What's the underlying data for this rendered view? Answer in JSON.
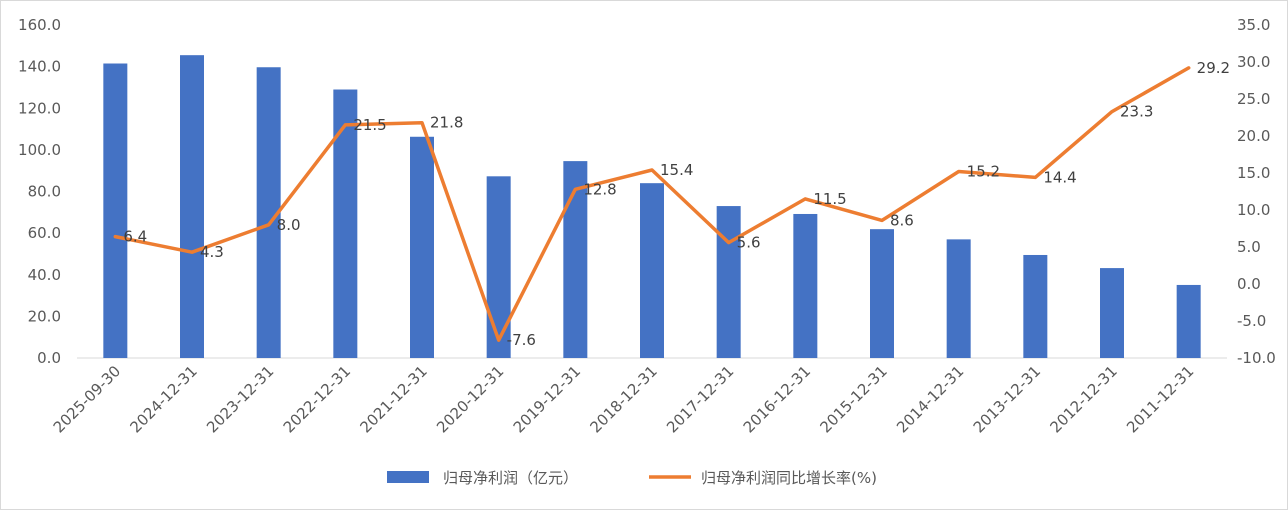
{
  "chart_data": {
    "type": "bar+line",
    "categories": [
      "2025-09-30",
      "2024-12-31",
      "2023-12-31",
      "2022-12-31",
      "2021-12-31",
      "2020-12-31",
      "2019-12-31",
      "2018-12-31",
      "2017-12-31",
      "2016-12-31",
      "2015-12-31",
      "2014-12-31",
      "2013-12-31",
      "2012-12-31",
      "2011-12-31"
    ],
    "series": [
      {
        "name": "归母净利润（亿元）",
        "type": "bar",
        "axis": "left",
        "color": "#4472C4",
        "values": [
          141.5,
          145.5,
          139.7,
          129.0,
          106.3,
          87.3,
          94.6,
          84.0,
          73.0,
          69.2,
          61.9,
          57.0,
          49.5,
          43.2,
          35.1
        ]
      },
      {
        "name": "归母净利润同比增长率(%)",
        "type": "line",
        "axis": "right",
        "color": "#ED7D31",
        "values": [
          6.4,
          4.3,
          8.0,
          21.5,
          21.8,
          -7.6,
          12.8,
          15.4,
          5.6,
          11.5,
          8.6,
          15.2,
          14.4,
          23.3,
          29.2
        ],
        "labels": [
          "6.4",
          "4.3",
          "8.0",
          "21.5",
          "21.8",
          "-7.6",
          "12.8",
          "15.4",
          "5.6",
          "11.5",
          "8.6",
          "15.2",
          "14.4",
          "23.3",
          "29.2"
        ]
      }
    ],
    "y_left": {
      "ylim": [
        0,
        160
      ],
      "ticks": [
        "0.0",
        "20.0",
        "40.0",
        "60.0",
        "80.0",
        "100.0",
        "120.0",
        "140.0",
        "160.0"
      ]
    },
    "y_right": {
      "ylim": [
        -10,
        35
      ],
      "ticks": [
        "-10.0",
        "-5.0",
        "0.0",
        "5.0",
        "10.0",
        "15.0",
        "20.0",
        "25.0",
        "30.0",
        "35.0"
      ]
    },
    "grid": false,
    "legend_position": "bottom",
    "title": "",
    "xlabel": "",
    "ylabel": ""
  }
}
